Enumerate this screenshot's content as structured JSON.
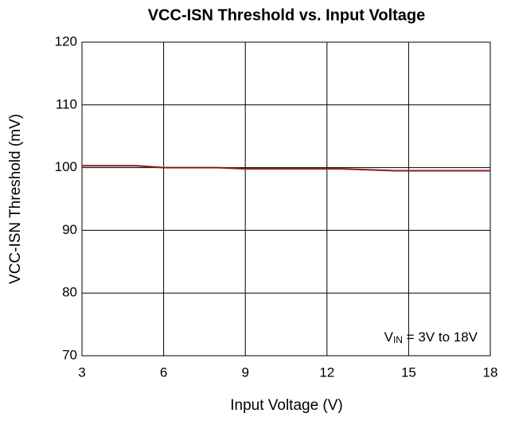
{
  "chart_data": {
    "type": "line",
    "title": "VCC-ISN Threshold vs. Input Voltage",
    "xlabel": "Input Voltage (V)",
    "ylabel": "VCC-ISN Threshold (mV)",
    "annotation": {
      "main": "V",
      "sub": "IN",
      "rest": " = 3V to 18V"
    },
    "x": [
      3,
      5,
      6,
      8,
      9,
      12.5,
      14.5,
      18
    ],
    "series": [
      {
        "name": "VCC-ISN Threshold",
        "color": "#8b1a1a",
        "values": [
          100.3,
          100.3,
          100.0,
          100.0,
          99.8,
          99.8,
          99.5,
          99.5
        ]
      }
    ],
    "xlim": [
      3,
      18
    ],
    "xticks": [
      3,
      6,
      9,
      12,
      15,
      18
    ],
    "ylim": [
      70,
      120
    ],
    "yticks": [
      70,
      80,
      90,
      100,
      110,
      120
    ],
    "grid": true
  }
}
